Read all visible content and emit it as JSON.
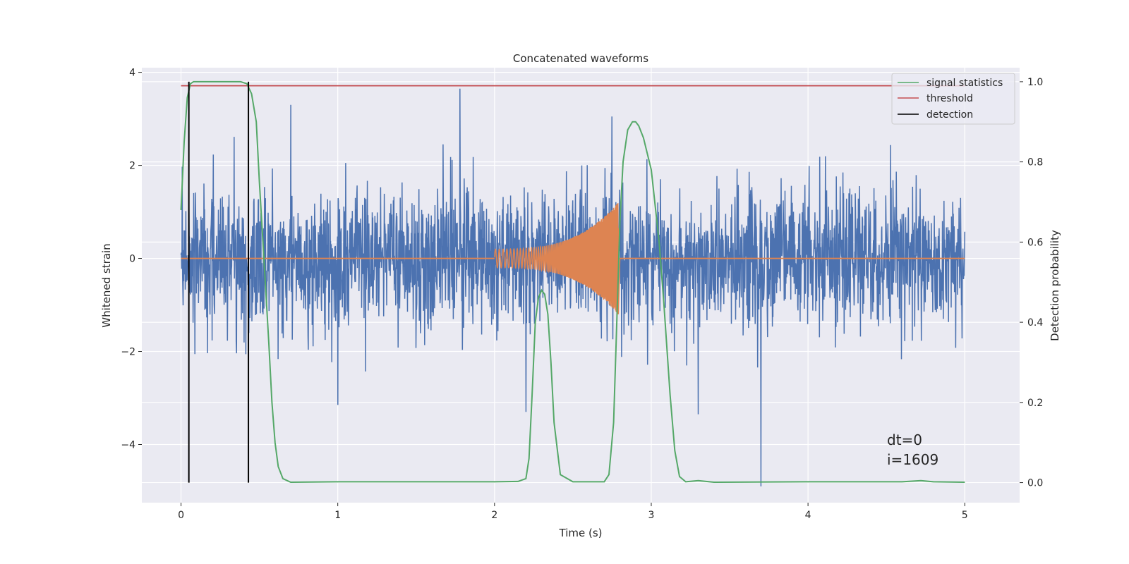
{
  "chart_data": {
    "type": "line",
    "title": "Concatenated waveforms",
    "xlabel": "Time (s)",
    "ylabel": "Whitened strain",
    "y2label": "Detection probability",
    "xlim": [
      -0.25,
      5.35
    ],
    "ylim": [
      -5.25,
      4.1
    ],
    "y2lim": [
      -0.05,
      1.035
    ],
    "x_ticks": [
      0,
      1,
      2,
      3,
      4,
      5
    ],
    "y_ticks": [
      -4,
      -2,
      0,
      2,
      4
    ],
    "y2_ticks": [
      0.0,
      0.2,
      0.4,
      0.6,
      0.8,
      1.0
    ],
    "x_tick_labels": [
      "0",
      "1",
      "2",
      "3",
      "4",
      "5"
    ],
    "y_tick_labels": [
      "−4",
      "−2",
      "0",
      "2",
      "4"
    ],
    "y2_tick_labels": [
      "0.0",
      "0.2",
      "0.4",
      "0.6",
      "0.8",
      "1.0"
    ],
    "grid": true,
    "legend_position": "top-right",
    "legend": [
      "signal statistics",
      "threshold",
      "detection"
    ],
    "colors": {
      "strain": "#4c72b0",
      "signal": "#dd8452",
      "stat": "#55a868",
      "threshold": "#c44e52",
      "detection": "#000000",
      "background": "#eaeaf2",
      "grid": "#ffffff"
    },
    "series": [
      {
        "kind": "noise",
        "x_range": [
          0,
          5
        ],
        "std": 0.75,
        "peaks": [
          {
            "x": 1.78,
            "y": 3.65
          },
          {
            "x": 3.7,
            "y": -4.9
          },
          {
            "x": 1.0,
            "y": -3.15
          },
          {
            "x": 3.3,
            "y": -3.35
          },
          {
            "x": 2.2,
            "y": -3.3
          },
          {
            "x": 0.7,
            "y": 3.3
          },
          {
            "x": 2.75,
            "y": 3.05
          }
        ]
      },
      {
        "kind": "chirp",
        "x_range": [
          2.0,
          2.79
        ],
        "amp_start": 0.2,
        "amp_end": 1.2,
        "f_start": 40,
        "f_end": 300
      },
      {
        "name": "signal statistics",
        "axis": "right",
        "x": [
          0.0,
          0.02,
          0.04,
          0.06,
          0.08,
          0.1,
          0.2,
          0.3,
          0.38,
          0.42,
          0.45,
          0.48,
          0.5,
          0.53,
          0.56,
          0.58,
          0.6,
          0.62,
          0.65,
          0.7,
          1.0,
          1.5,
          2.0,
          2.15,
          2.2,
          2.22,
          2.24,
          2.26,
          2.28,
          2.3,
          2.32,
          2.34,
          2.36,
          2.38,
          2.42,
          2.5,
          2.6,
          2.7,
          2.73,
          2.76,
          2.78,
          2.8,
          2.82,
          2.85,
          2.88,
          2.9,
          2.92,
          2.95,
          3.0,
          3.05,
          3.08,
          3.12,
          3.15,
          3.18,
          3.22,
          3.3,
          3.4,
          4.0,
          4.6,
          4.72,
          4.8,
          5.0
        ],
        "y": [
          0.68,
          0.85,
          0.96,
          0.995,
          1.0,
          1.0,
          1.0,
          1.0,
          1.0,
          0.995,
          0.97,
          0.9,
          0.75,
          0.55,
          0.35,
          0.2,
          0.1,
          0.04,
          0.01,
          0.001,
          0.002,
          0.002,
          0.002,
          0.003,
          0.01,
          0.06,
          0.22,
          0.4,
          0.46,
          0.48,
          0.47,
          0.42,
          0.3,
          0.15,
          0.02,
          0.002,
          0.002,
          0.002,
          0.02,
          0.15,
          0.4,
          0.65,
          0.8,
          0.88,
          0.9,
          0.9,
          0.89,
          0.86,
          0.78,
          0.6,
          0.45,
          0.22,
          0.08,
          0.015,
          0.002,
          0.005,
          0.001,
          0.002,
          0.002,
          0.005,
          0.002,
          0.001
        ]
      },
      {
        "name": "threshold",
        "axis": "right",
        "x": [
          0,
          5
        ],
        "y": [
          0.99,
          0.99
        ]
      }
    ],
    "detections": [
      0.05,
      0.43
    ],
    "annotations": [
      "dt=0",
      "i=1609"
    ]
  }
}
